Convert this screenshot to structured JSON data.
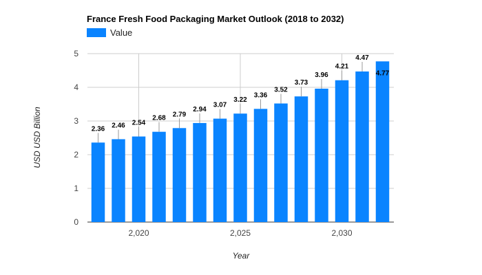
{
  "chart_data": {
    "type": "bar",
    "title": "France Fresh Food Packaging Market Outlook (2018 to 2032)",
    "xlabel": "Year",
    "ylabel": "USD USD Billion",
    "x": [
      2018,
      2019,
      2020,
      2021,
      2022,
      2023,
      2024,
      2025,
      2026,
      2027,
      2028,
      2029,
      2030,
      2031,
      2032
    ],
    "series": [
      {
        "name": "Value",
        "color": "#0a84ff",
        "values": [
          2.36,
          2.46,
          2.54,
          2.68,
          2.79,
          2.94,
          3.07,
          3.22,
          3.36,
          3.52,
          3.73,
          3.96,
          4.21,
          4.47,
          4.77
        ]
      }
    ],
    "data_labels": [
      "2.36",
      "2.46",
      "2.54",
      "2.68",
      "2.79",
      "2.94",
      "3.07",
      "3.22",
      "3.36",
      "3.52",
      "3.73",
      "3.96",
      "4.21",
      "4.47",
      "4.77"
    ],
    "ylim": [
      0,
      5
    ],
    "yticks": [
      0,
      1,
      2,
      3,
      4,
      5
    ],
    "xticks": [
      2020,
      2025,
      2030
    ],
    "xtick_labels": [
      "2,020",
      "2,025",
      "2,030"
    ],
    "grid": true,
    "legend": "top-left"
  }
}
